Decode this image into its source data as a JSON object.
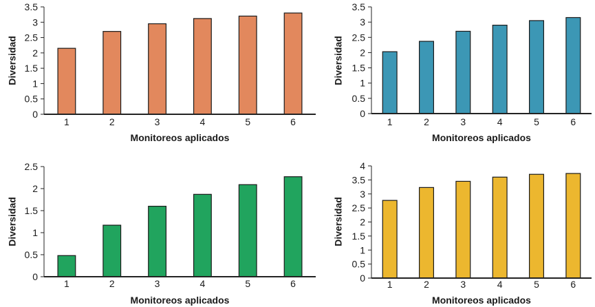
{
  "chart_data": [
    {
      "type": "bar",
      "categories": [
        "1",
        "2",
        "3",
        "4",
        "5",
        "6"
      ],
      "values": [
        2.15,
        2.7,
        2.95,
        3.12,
        3.2,
        3.3
      ],
      "xlabel": "Monitoreos aplicados",
      "ylabel": "Diversidad",
      "ylim": [
        0,
        3.5
      ],
      "yticks": [
        "0",
        "0.5",
        "1",
        "1.5",
        "2",
        "2.5",
        "3",
        "3.5"
      ],
      "color": "#E2885D"
    },
    {
      "type": "bar",
      "categories": [
        "1",
        "2",
        "3",
        "4",
        "5",
        "6"
      ],
      "values": [
        2.03,
        2.37,
        2.7,
        2.9,
        3.05,
        3.15
      ],
      "xlabel": "Monitoreos aplicados",
      "ylabel": "Diversidad",
      "ylim": [
        0,
        3.5
      ],
      "yticks": [
        "0",
        "0.5",
        "1",
        "1.5",
        "2",
        "2.5",
        "3",
        "3.5"
      ],
      "color": "#3C97B5"
    },
    {
      "type": "bar",
      "categories": [
        "1",
        "2",
        "3",
        "4",
        "5",
        "6"
      ],
      "values": [
        0.48,
        1.17,
        1.6,
        1.87,
        2.09,
        2.27
      ],
      "xlabel": "Monitoreos aplicados",
      "ylabel": "Diversidad",
      "ylim": [
        0,
        2.5
      ],
      "yticks": [
        "0",
        "0.5",
        "1",
        "1.5",
        "2",
        "2.5"
      ],
      "color": "#21A45E"
    },
    {
      "type": "bar",
      "categories": [
        "1",
        "2",
        "3",
        "4",
        "5",
        "6"
      ],
      "values": [
        2.77,
        3.23,
        3.45,
        3.6,
        3.7,
        3.73
      ],
      "xlabel": "Monitoreos aplicados",
      "ylabel": "Diversidad",
      "ylim": [
        0,
        4
      ],
      "yticks": [
        "0",
        "0.5",
        "1",
        "1.5",
        "2",
        "2.5",
        "3",
        "3.5",
        "4"
      ],
      "color": "#ECB72F"
    }
  ]
}
